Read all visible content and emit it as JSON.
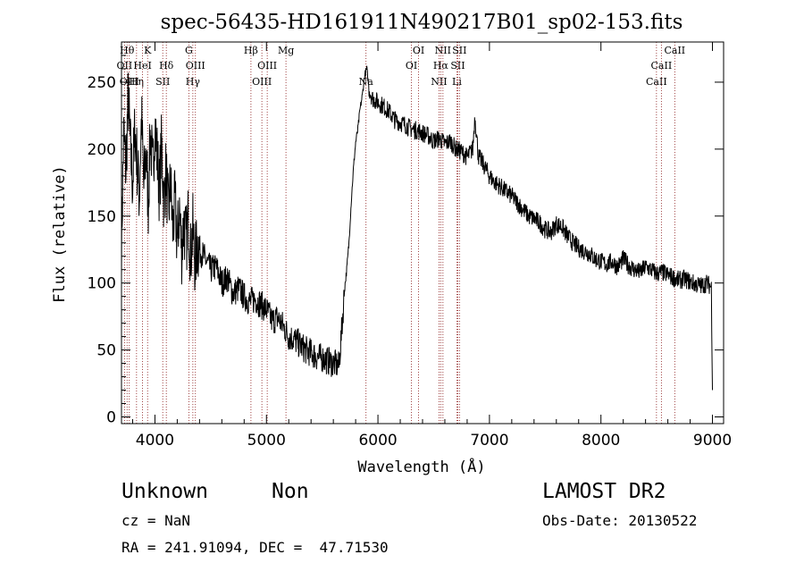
{
  "chart_data": {
    "type": "line",
    "title": "spec-56435-HD161911N490217B01_sp02-153.fits",
    "xlabel": "Wavelength (Å)",
    "ylabel": "Flux (relative)",
    "xlim": [
      3700,
      9100
    ],
    "ylim": [
      -5,
      280
    ],
    "xticks": [
      4000,
      5000,
      6000,
      7000,
      8000,
      9000
    ],
    "yticks": [
      0,
      50,
      100,
      150,
      200,
      250
    ],
    "grid": false,
    "series": [
      {
        "x": [
          3700,
          3720,
          3740,
          3760,
          3780,
          3800,
          3820,
          3840,
          3860,
          3880,
          3900,
          3920,
          3940,
          3960,
          3980,
          4000,
          4020,
          4040,
          4060,
          4080,
          4100,
          4120,
          4140,
          4160,
          4180,
          4200,
          4220,
          4240,
          4260,
          4280,
          4300,
          4320,
          4340,
          4360,
          4380,
          4400,
          4450,
          4500,
          4550,
          4600,
          4650,
          4700,
          4750,
          4800,
          4850,
          4900,
          4950,
          5000,
          5050,
          5100,
          5150,
          5200,
          5250,
          5300,
          5350,
          5400,
          5450,
          5500,
          5550,
          5600,
          5650,
          5680,
          5700,
          5720,
          5740,
          5760,
          5780,
          5800,
          5820,
          5840,
          5860,
          5880,
          5900,
          5920,
          5950,
          6000,
          6050,
          6100,
          6150,
          6200,
          6250,
          6300,
          6350,
          6400,
          6450,
          6500,
          6550,
          6600,
          6650,
          6700,
          6750,
          6800,
          6850,
          6870,
          6900,
          6950,
          7000,
          7050,
          7100,
          7150,
          7200,
          7250,
          7300,
          7350,
          7400,
          7450,
          7500,
          7550,
          7600,
          7650,
          7700,
          7750,
          7800,
          7850,
          7900,
          7950,
          8000,
          8050,
          8100,
          8150,
          8200,
          8250,
          8300,
          8350,
          8400,
          8450,
          8500,
          8550,
          8600,
          8650,
          8700,
          8750,
          8800,
          8850,
          8900,
          8950,
          8990,
          9000
        ],
        "y": [
          130,
          210,
          185,
          240,
          200,
          175,
          215,
          190,
          165,
          225,
          170,
          200,
          160,
          215,
          180,
          220,
          195,
          170,
          205,
          160,
          185,
          150,
          175,
          140,
          160,
          130,
          155,
          125,
          145,
          130,
          150,
          120,
          140,
          115,
          130,
          125,
          118,
          110,
          112,
          100,
          104,
          92,
          96,
          90,
          86,
          88,
          84,
          80,
          72,
          74,
          68,
          60,
          58,
          54,
          50,
          48,
          45,
          44,
          42,
          40,
          38,
          70,
          95,
          110,
          130,
          160,
          185,
          205,
          215,
          230,
          240,
          255,
          260,
          245,
          238,
          235,
          232,
          228,
          222,
          220,
          218,
          215,
          214,
          212,
          210,
          206,
          208,
          204,
          206,
          200,
          198,
          194,
          200,
          225,
          195,
          188,
          180,
          175,
          172,
          168,
          165,
          160,
          155,
          150,
          148,
          145,
          140,
          138,
          144,
          142,
          135,
          130,
          126,
          124,
          122,
          118,
          116,
          114,
          116,
          112,
          118,
          113,
          110,
          108,
          112,
          110,
          107,
          108,
          106,
          104,
          102,
          103,
          101,
          99,
          98,
          100,
          97,
          20
        ]
      }
    ],
    "lines": [
      {
        "wl": 3727,
        "label": "OII",
        "row": 2
      },
      {
        "wl": 3750,
        "label": "Hθ",
        "row": 1
      },
      {
        "wl": 3770,
        "label": "OIII",
        "row": 3
      },
      {
        "wl": 3835,
        "label": "Hη",
        "row": 3
      },
      {
        "wl": 3889,
        "label": "HeI",
        "row": 2
      },
      {
        "wl": 3934,
        "label": "K",
        "row": 1
      },
      {
        "wl": 4102,
        "label": "Hδ",
        "row": 2
      },
      {
        "wl": 4070,
        "label": "SII",
        "row": 3
      },
      {
        "wl": 4304,
        "label": "G",
        "row": 1
      },
      {
        "wl": 4340,
        "label": "Hγ",
        "row": 3
      },
      {
        "wl": 4363,
        "label": "OIII",
        "row": 2
      },
      {
        "wl": 4861,
        "label": "Hβ",
        "row": 1
      },
      {
        "wl": 4959,
        "label": "OIII",
        "row": 3
      },
      {
        "wl": 5007,
        "label": "OIII",
        "row": 2
      },
      {
        "wl": 5175,
        "label": "Mg",
        "row": 1
      },
      {
        "wl": 5893,
        "label": "Na",
        "row": 3
      },
      {
        "wl": 6300,
        "label": "OI",
        "row": 2
      },
      {
        "wl": 6364,
        "label": "OI",
        "row": 1
      },
      {
        "wl": 6548,
        "label": "NII",
        "row": 3
      },
      {
        "wl": 6563,
        "label": "Hα",
        "row": 2
      },
      {
        "wl": 6583,
        "label": "NII",
        "row": 1
      },
      {
        "wl": 6708,
        "label": "Li",
        "row": 3
      },
      {
        "wl": 6716,
        "label": "SII",
        "row": 2
      },
      {
        "wl": 6731,
        "label": "SII",
        "row": 1
      },
      {
        "wl": 8498,
        "label": "CaII",
        "row": 3
      },
      {
        "wl": 8542,
        "label": "CaII",
        "row": 2
      },
      {
        "wl": 8662,
        "label": "CaII",
        "row": 1
      }
    ]
  },
  "info": {
    "class": "Unknown",
    "subclass": "Non",
    "cz": "cz = NaN",
    "coords": "RA = 241.91094, DEC =  47.71530",
    "survey": "LAMOST DR2",
    "obs_date": "Obs-Date: 20130522"
  }
}
